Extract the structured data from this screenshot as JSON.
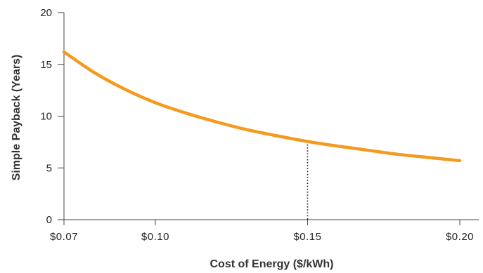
{
  "chart_data": {
    "type": "line",
    "title": "",
    "xlabel": "Cost of Energy ($/kWh)",
    "ylabel": "Simple Payback (Years)",
    "xlim": [
      0.07,
      0.2
    ],
    "ylim": [
      0,
      20
    ],
    "grid": false,
    "x_ticks": [
      {
        "value": 0.07,
        "label": "$0.07"
      },
      {
        "value": 0.1,
        "label": "$0.10"
      },
      {
        "value": 0.15,
        "label": "$0.15"
      },
      {
        "value": 0.2,
        "label": "$0.20"
      }
    ],
    "y_ticks": [
      {
        "value": 0,
        "label": "0"
      },
      {
        "value": 5,
        "label": "5"
      },
      {
        "value": 10,
        "label": "10"
      },
      {
        "value": 15,
        "label": "15"
      },
      {
        "value": 20,
        "label": "20"
      }
    ],
    "series": [
      {
        "color": "#f39a1f",
        "x": [
          0.07,
          0.08,
          0.09,
          0.1,
          0.11,
          0.12,
          0.13,
          0.14,
          0.15,
          0.16,
          0.17,
          0.18,
          0.19,
          0.2
        ],
        "y": [
          16.2,
          14.2,
          12.6,
          11.3,
          10.3,
          9.45,
          8.7,
          8.1,
          7.55,
          7.1,
          6.7,
          6.3,
          6.0,
          5.7
        ]
      }
    ],
    "reference_line": {
      "x": 0.15,
      "y": 7.55,
      "style": "dotted",
      "color": "#222222"
    }
  }
}
